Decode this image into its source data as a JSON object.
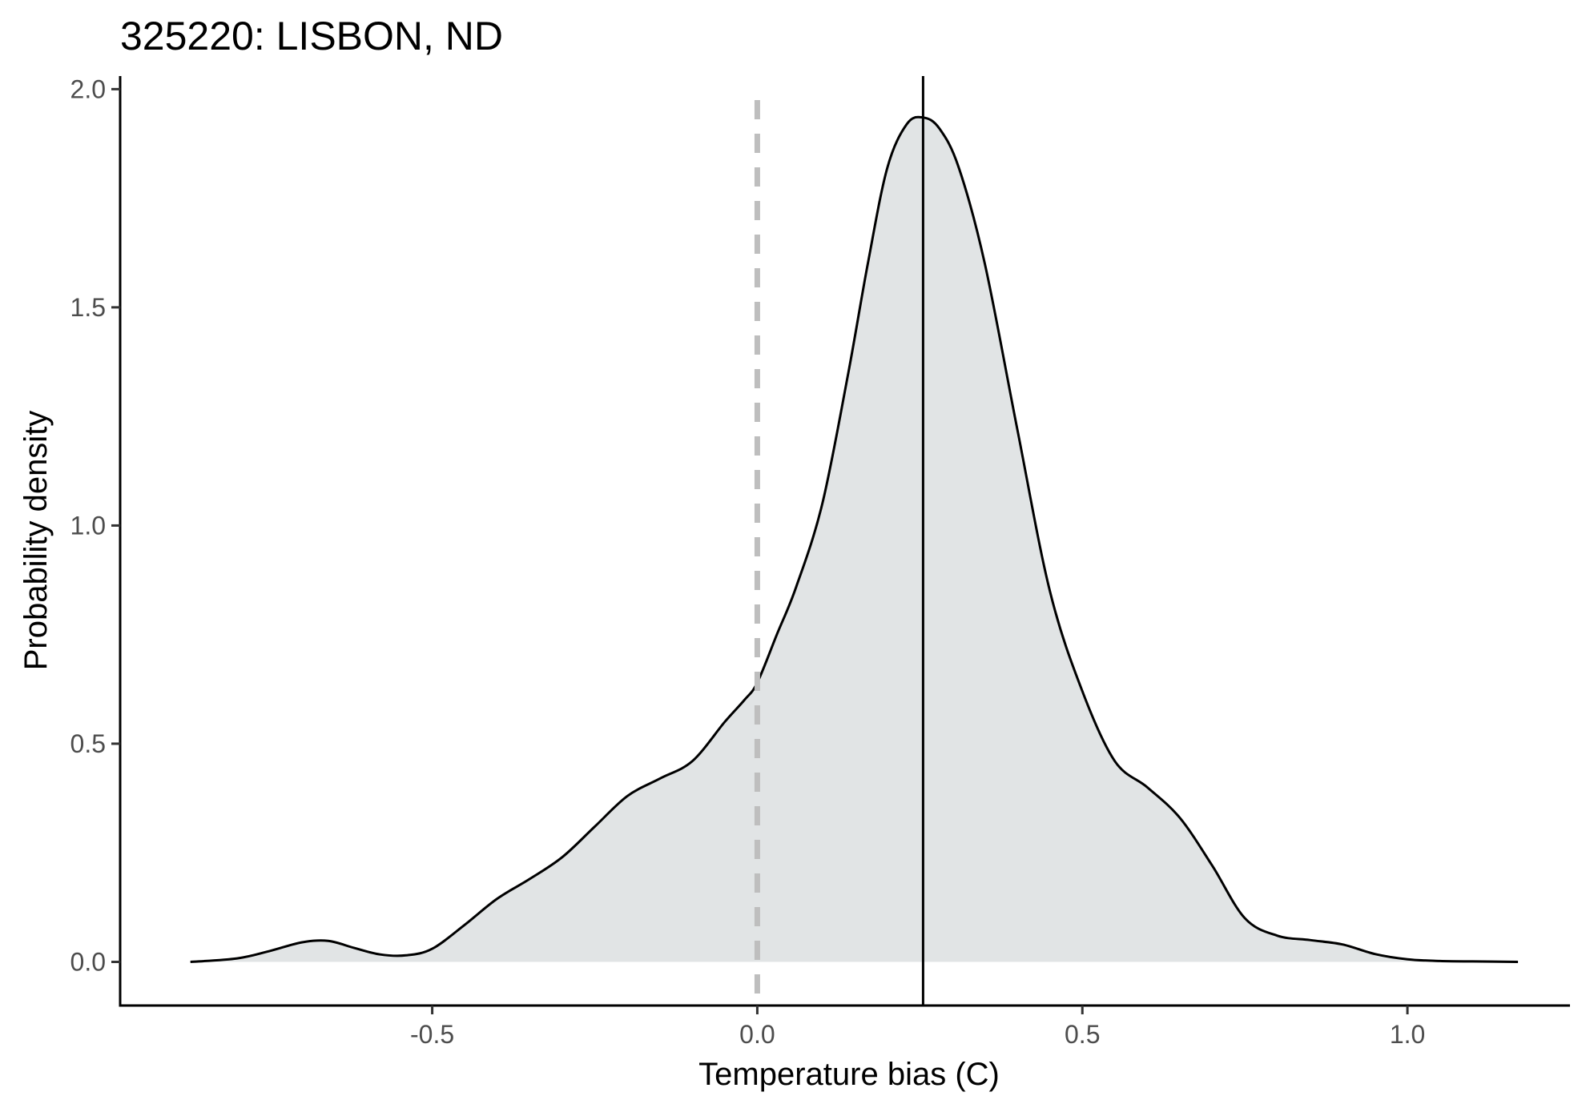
{
  "chart_data": {
    "type": "area",
    "title": "325220: LISBON, ND",
    "xlabel": "Temperature bias (C)",
    "ylabel": "Probability density",
    "xlim": [
      -0.98,
      1.25
    ],
    "ylim": [
      -0.1,
      2.03
    ],
    "x_ticks": [
      {
        "value": -0.5,
        "label": "-0.5"
      },
      {
        "value": 0.0,
        "label": "0.0"
      },
      {
        "value": 0.5,
        "label": "0.5"
      },
      {
        "value": 1.0,
        "label": "1.0"
      }
    ],
    "y_ticks": [
      {
        "value": 0.0,
        "label": "0.0"
      },
      {
        "value": 0.5,
        "label": "0.5"
      },
      {
        "value": 1.0,
        "label": "1.0"
      },
      {
        "value": 1.5,
        "label": "1.5"
      },
      {
        "value": 2.0,
        "label": "2.0"
      }
    ],
    "grid": false,
    "legend": "none",
    "colors": {
      "fill": "#e1e4e5",
      "curve": "#000000",
      "reference_line": "#bebebe",
      "estimate_line": "#000000",
      "axis": "#000000"
    },
    "reference_line_x": 0.0,
    "estimate_line_x": 0.255,
    "series": [
      {
        "x": [
          -0.872,
          -0.8,
          -0.75,
          -0.7,
          -0.66,
          -0.62,
          -0.58,
          -0.54,
          -0.5,
          -0.45,
          -0.4,
          -0.35,
          -0.3,
          -0.25,
          -0.2,
          -0.15,
          -0.1,
          -0.05,
          -0.02,
          0.0,
          0.03,
          0.06,
          0.1,
          0.14,
          0.17,
          0.2,
          0.23,
          0.255,
          0.28,
          0.31,
          0.35,
          0.4,
          0.45,
          0.5,
          0.55,
          0.6,
          0.65,
          0.7,
          0.75,
          0.8,
          0.85,
          0.9,
          0.95,
          1.0,
          1.05,
          1.1,
          1.17
        ],
        "values": [
          0.0,
          0.008,
          0.025,
          0.045,
          0.048,
          0.032,
          0.017,
          0.015,
          0.03,
          0.085,
          0.145,
          0.19,
          0.24,
          0.31,
          0.38,
          0.42,
          0.46,
          0.55,
          0.6,
          0.64,
          0.75,
          0.86,
          1.05,
          1.35,
          1.6,
          1.82,
          1.92,
          1.935,
          1.91,
          1.82,
          1.6,
          1.22,
          0.85,
          0.62,
          0.46,
          0.4,
          0.33,
          0.22,
          0.1,
          0.06,
          0.05,
          0.04,
          0.018,
          0.006,
          0.002,
          0.001,
          0.0
        ]
      }
    ]
  }
}
